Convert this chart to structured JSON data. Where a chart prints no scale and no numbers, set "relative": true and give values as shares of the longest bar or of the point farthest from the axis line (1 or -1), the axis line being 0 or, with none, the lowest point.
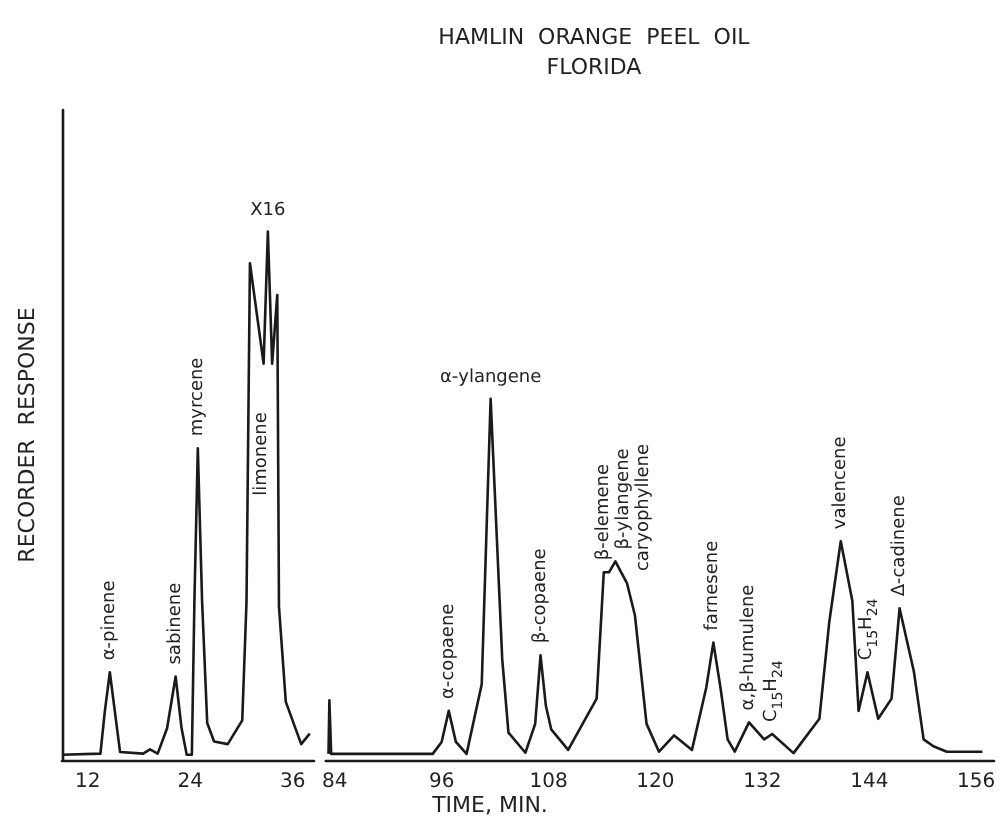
{
  "chart_data": [
    {
      "type": "line",
      "ylabel": "RECORDER  RESPONSE",
      "relative": true,
      "tick_labels": "x",
      "line_style": "solid",
      "xlim": [
        9,
        38.5
      ],
      "xticks": [
        12,
        24,
        36
      ],
      "x": [
        9.0,
        13.5,
        14.0,
        14.6,
        15.2,
        15.8,
        18.5,
        19.3,
        20.2,
        21.3,
        22.3,
        23.0,
        23.6,
        24.2,
        24.5,
        24.9,
        25.4,
        26.0,
        26.8,
        28.4,
        30.1,
        30.6,
        31.0,
        32.6,
        33.1,
        33.6,
        34.2,
        34.4,
        35.2,
        37.0,
        38.0
      ],
      "series": [
        {
          "color": "#1a1a1a",
          "values": [
            0.01,
            0.012,
            0.09,
            0.166,
            0.09,
            0.015,
            0.012,
            0.02,
            0.012,
            0.06,
            0.158,
            0.06,
            0.01,
            0.01,
            0.3,
            0.59,
            0.3,
            0.07,
            0.035,
            0.03,
            0.075,
            0.3,
            0.94,
            0.75,
            1.0,
            0.75,
            0.88,
            0.29,
            0.11,
            0.03,
            0.05
          ]
        }
      ],
      "annotations": [
        {
          "text": "α-pinene",
          "x": 14.6,
          "y": 0.166
        },
        {
          "text": "sabinene",
          "x": 22.3,
          "y": 0.158
        },
        {
          "text": "myrcene",
          "x": 24.9,
          "y": 0.59
        },
        "limonene",
        {
          "text": "X16",
          "x": 33.1,
          "y": 1.0
        }
      ]
    },
    {
      "type": "line",
      "title": "HAMLIN  ORANGE  PEEL  OIL",
      "subtitle": "FLORIDA",
      "xlabel": "TIME, MIN.",
      "relative": true,
      "tick_labels": "x",
      "line_style": "solid",
      "xlim": [
        83,
        158
      ],
      "xticks": [
        84,
        96,
        108,
        120,
        132,
        144,
        156
      ],
      "x": [
        83.3,
        83.4,
        83.6,
        95.0,
        96.0,
        96.8,
        97.6,
        98.8,
        100.5,
        101.5,
        102.8,
        103.5,
        105.4,
        106.5,
        107.1,
        107.7,
        108.3,
        110.2,
        113.4,
        114.2,
        114.8,
        115.5,
        116.8,
        117.7,
        119.0,
        120.4,
        122.1,
        124.1,
        125.7,
        126.5,
        127.3,
        128.1,
        128.9,
        130.5,
        132.2,
        133.1,
        135.5,
        138.4,
        139.5,
        140.8,
        142.1,
        142.8,
        143.8,
        145.0,
        146.5,
        147.4,
        149.0,
        150.1,
        151.2,
        152.7,
        156.7
      ],
      "series": [
        {
          "color": "#1a1a1a",
          "values": [
            0.017,
            0.165,
            0.017,
            0.017,
            0.05,
            0.136,
            0.05,
            0.017,
            0.21,
            1.0,
            0.28,
            0.076,
            0.02,
            0.1,
            0.29,
            0.15,
            0.085,
            0.028,
            0.17,
            0.52,
            0.52,
            0.55,
            0.49,
            0.4,
            0.1,
            0.023,
            0.068,
            0.028,
            0.2,
            0.325,
            0.2,
            0.057,
            0.023,
            0.104,
            0.057,
            0.072,
            0.019,
            0.114,
            0.38,
            0.606,
            0.44,
            0.136,
            0.243,
            0.114,
            0.17,
            0.42,
            0.246,
            0.057,
            0.038,
            0.023,
            0.023
          ]
        }
      ],
      "annotations": [
        {
          "text": "α-copaene",
          "x": 96.8,
          "y": 0.136
        },
        {
          "text": "α-ylangene",
          "x": 101.5,
          "y": 1.0
        },
        {
          "text": "β-copaene",
          "x": 107.1,
          "y": 0.29
        },
        {
          "text": "β-elemene",
          "x": 114.2,
          "y": 0.52
        },
        {
          "text": "β-ylangene",
          "x": 115.5,
          "y": 0.55
        },
        {
          "text": "caryophyllene",
          "x": 116.8,
          "y": 0.49
        },
        {
          "text": "farnesene",
          "x": 126.5,
          "y": 0.325
        },
        {
          "text": "α,β-humulene",
          "x": 130.5,
          "y": 0.104
        },
        {
          "text": "C$_{15}$H$_{24}$",
          "x": 133.1,
          "y": 0.072
        },
        {
          "text": "valencene",
          "x": 140.8,
          "y": 0.606
        },
        {
          "text": "C$_{15}$H$_{24}$",
          "x": 143.8,
          "y": 0.243
        },
        {
          "text": "Δ-cadinene",
          "x": 147.4,
          "y": 0.42
        }
      ]
    }
  ]
}
